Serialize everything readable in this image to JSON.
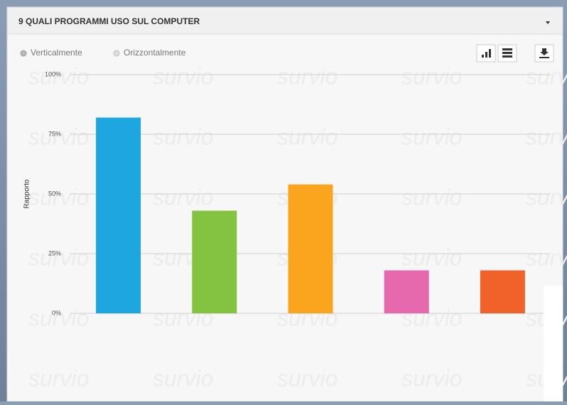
{
  "header": {
    "title": "9 QUALI PROGRAMMI USO SUL COMPUTER",
    "options": [
      "Verticalmente",
      "Orizzontalmente"
    ],
    "watermark": "survio"
  },
  "chart_data": {
    "type": "bar",
    "y_label": "Rapporto",
    "categories": [
      null,
      null,
      null,
      null,
      null
    ],
    "values": [
      82,
      43,
      54,
      18,
      18
    ],
    "colors": [
      "#1ea6e0",
      "#84c341",
      "#fba41e",
      "#e669ad",
      "#f1622a"
    ],
    "ylim": [
      0,
      100
    ],
    "yticks": [
      {
        "value": 0,
        "label": "0%"
      },
      {
        "value": 25,
        "label": "25%"
      },
      {
        "value": 50,
        "label": "50%"
      },
      {
        "value": 75,
        "label": "75%"
      },
      {
        "value": 100,
        "label": "100%"
      }
    ],
    "grid": true
  }
}
